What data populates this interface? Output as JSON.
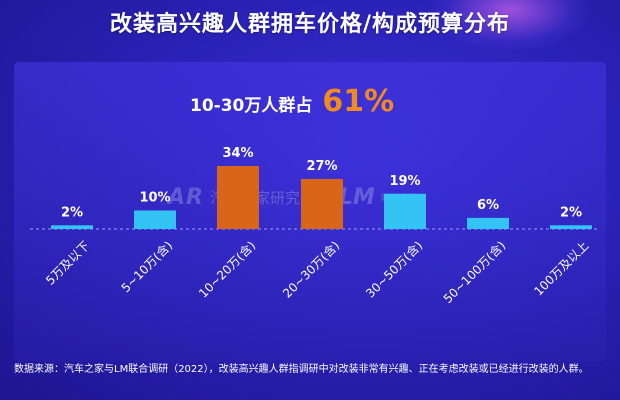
{
  "title": "改装高兴趣人群拥车价格/构成预算分布",
  "highlight": {
    "label": "10-30万人群占",
    "value": "61%"
  },
  "watermark": {
    "logo1": "AR",
    "text1": "汽车之家研究院",
    "logo2": "LM",
    "text2": "联合调研"
  },
  "footnote": "数据来源：汽车之家与LM联合调研（2022），改装高兴趣人群指调研中对改装非常有兴趣、正在考虑改装或已经进行改装的人群。",
  "colors": {
    "blue_bar": "#33c4f5",
    "orange_bar": "#d9651a",
    "highlight_value": "#f28a22"
  },
  "chart_data": {
    "type": "bar",
    "title": "",
    "xlabel": "",
    "ylabel": "",
    "ylim": [
      0,
      34
    ],
    "categories": [
      "5万及以下",
      "5~10万(含)",
      "10~20万(含)",
      "20~30万(含)",
      "30~50万(含)",
      "50~100万(含)",
      "100万及以上"
    ],
    "values": [
      2,
      10,
      34,
      27,
      19,
      6,
      2
    ],
    "value_labels": [
      "2%",
      "10%",
      "34%",
      "27%",
      "19%",
      "6%",
      "2%"
    ],
    "bar_colors": [
      "blue",
      "blue",
      "orange",
      "orange",
      "blue",
      "blue",
      "blue"
    ]
  }
}
